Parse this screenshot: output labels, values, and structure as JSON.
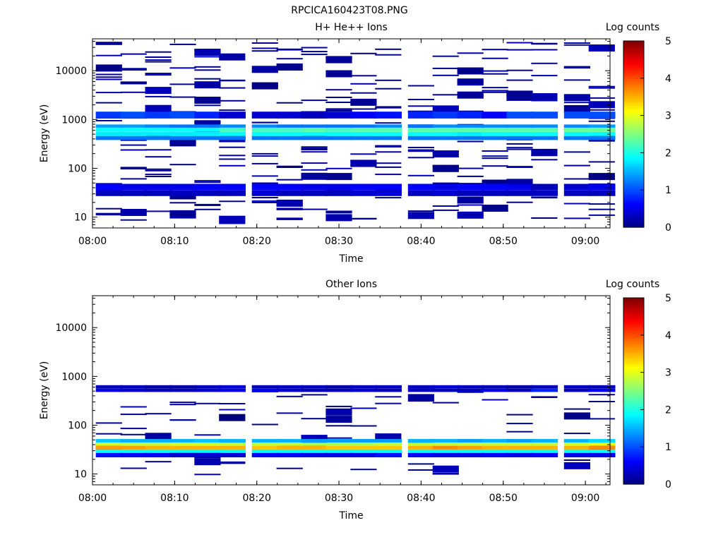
{
  "image_title": "RPCICA160423T08.PNG",
  "chart_data": [
    {
      "type": "heatmap",
      "title": "H+ He++ Ions",
      "xlabel": "Time",
      "ylabel": "Energy (eV)",
      "y_scale": "log",
      "ylim": [
        6,
        45000
      ],
      "xlim": [
        "08:00",
        "09:03"
      ],
      "x_ticks": [
        "08:00",
        "08:10",
        "08:20",
        "08:30",
        "08:40",
        "08:50",
        "09:00"
      ],
      "y_ticks": [
        "10",
        "100",
        "1000",
        "10000"
      ],
      "colorbar": {
        "label": "Log counts",
        "ticks": [
          "0",
          "1",
          "2",
          "3",
          "4",
          "5"
        ],
        "range": [
          0,
          5
        ],
        "colormap": "jet"
      },
      "time_bins": [
        "08:02",
        "08:05",
        "08:08",
        "08:11",
        "08:14",
        "08:17",
        "08:21",
        "08:24",
        "08:27",
        "08:30",
        "08:33",
        "08:36",
        "08:40",
        "08:43",
        "08:46",
        "08:49",
        "08:52",
        "08:55",
        "08:59",
        "09:02"
      ],
      "bands": [
        {
          "e_lo": 380,
          "e_hi": 460,
          "log_counts": [
            1.2,
            1.2,
            1.2,
            1.2,
            1.2,
            1.2,
            1.2,
            1.2,
            1.2,
            1.2,
            1.2,
            1.2,
            1.2,
            1.2,
            1.2,
            1.2,
            1.2,
            1.2,
            1.2,
            1.2
          ]
        },
        {
          "e_lo": 460,
          "e_hi": 560,
          "log_counts": [
            1.8,
            1.8,
            1.8,
            1.8,
            1.8,
            1.9,
            1.9,
            1.9,
            1.9,
            1.9,
            1.9,
            1.9,
            1.9,
            1.9,
            1.8,
            1.9,
            1.9,
            1.9,
            1.9,
            1.9
          ]
        },
        {
          "e_lo": 560,
          "e_hi": 680,
          "log_counts": [
            1.9,
            1.9,
            1.9,
            1.9,
            1.9,
            2.2,
            2.2,
            2.2,
            2.3,
            2.2,
            2.3,
            2.3,
            2.3,
            2.3,
            2.3,
            2.3,
            2.3,
            2.3,
            2.4,
            2.4
          ]
        },
        {
          "e_lo": 680,
          "e_hi": 790,
          "log_counts": [
            1.4,
            1.4,
            1.3,
            1.2,
            1.2,
            1.3,
            1.3,
            1.2,
            1.2,
            1.2,
            1.2,
            1.3,
            1.2,
            1.3,
            1.3,
            1.3,
            1.3,
            1.3,
            1.3,
            1.4
          ]
        },
        {
          "e_lo": 1050,
          "e_hi": 1450,
          "log_counts": [
            0.9,
            1.0,
            0.9,
            1.0,
            0.8,
            0.4,
            0.4,
            0.4,
            0.3,
            0.4,
            0.6,
            0.7,
            0.8,
            0.9,
            0.8,
            0.6,
            1.0,
            1.0,
            1.0,
            1.0
          ]
        },
        {
          "e_lo": 36,
          "e_hi": 48,
          "log_counts": [
            0.6,
            0.5,
            0.5,
            0.5,
            0.6,
            0.6,
            0.6,
            0.6,
            0.5,
            0.5,
            0.6,
            0.6,
            0.6,
            0.5,
            0.6,
            0.6,
            0.5,
            0.3,
            0.4,
            0.5
          ]
        },
        {
          "e_lo": 27,
          "e_hi": 36,
          "log_counts": [
            0.3,
            0.3,
            0.3,
            0.3,
            0.3,
            0.3,
            0.4,
            0.3,
            0.3,
            0.3,
            0.4,
            0.4,
            0.3,
            0.4,
            0.3,
            0.3,
            0.3,
            0.3,
            0.3,
            0.3
          ]
        }
      ],
      "sparse_bins": "scattered single-count bins (log counts ≈ 0–0.3) across 9–40000 eV"
    },
    {
      "type": "heatmap",
      "title": "Other Ions",
      "xlabel": "Time",
      "ylabel": "Energy (eV)",
      "y_scale": "log",
      "ylim": [
        6,
        45000
      ],
      "xlim": [
        "08:00",
        "09:03"
      ],
      "x_ticks": [
        "08:00",
        "08:10",
        "08:20",
        "08:30",
        "08:40",
        "08:50",
        "09:00"
      ],
      "y_ticks": [
        "10",
        "100",
        "1000",
        "10000"
      ],
      "colorbar": {
        "label": "Log counts",
        "ticks": [
          "0",
          "1",
          "2",
          "3",
          "4",
          "5"
        ],
        "range": [
          0,
          5
        ],
        "colormap": "jet"
      },
      "time_bins": [
        "08:02",
        "08:05",
        "08:08",
        "08:11",
        "08:14",
        "08:17",
        "08:21",
        "08:24",
        "08:27",
        "08:30",
        "08:33",
        "08:36",
        "08:40",
        "08:43",
        "08:46",
        "08:49",
        "08:52",
        "08:55",
        "08:59",
        "09:02"
      ],
      "bands": [
        {
          "e_lo": 27,
          "e_hi": 32,
          "log_counts": [
            1.9,
            1.9,
            1.9,
            1.9,
            1.9,
            1.9,
            1.9,
            1.9,
            1.9,
            1.9,
            1.9,
            1.9,
            1.9,
            1.9,
            1.9,
            1.9,
            1.9,
            1.9,
            1.9,
            1.9
          ]
        },
        {
          "e_lo": 32,
          "e_hi": 38,
          "log_counts": [
            3.6,
            3.6,
            3.5,
            3.5,
            3.5,
            3.5,
            3.4,
            3.5,
            3.5,
            3.4,
            3.4,
            3.4,
            3.5,
            3.7,
            3.6,
            3.5,
            3.5,
            3.5,
            3.5,
            3.7
          ]
        },
        {
          "e_lo": 38,
          "e_hi": 44,
          "log_counts": [
            2.9,
            2.8,
            2.8,
            2.9,
            2.9,
            2.8,
            2.8,
            2.8,
            2.7,
            2.7,
            2.7,
            2.8,
            2.8,
            2.8,
            2.8,
            2.8,
            2.8,
            2.8,
            2.9,
            3.0
          ]
        },
        {
          "e_lo": 44,
          "e_hi": 52,
          "log_counts": [
            1.6,
            1.5,
            1.5,
            1.5,
            1.6,
            1.5,
            1.5,
            1.5,
            1.4,
            1.4,
            1.4,
            1.4,
            1.5,
            1.5,
            1.4,
            1.5,
            1.4,
            1.5,
            1.5,
            1.7
          ]
        },
        {
          "e_lo": 22,
          "e_hi": 27,
          "log_counts": [
            0.7,
            0.6,
            0.6,
            0.4,
            0.4,
            0.4,
            0.6,
            0.6,
            0.5,
            0.5,
            0.5,
            0.7,
            0.6,
            0.5,
            0.5,
            0.6,
            0.5,
            0.6,
            0.5,
            0.5
          ]
        },
        {
          "e_lo": 480,
          "e_hi": 560,
          "log_counts": [
            0.5,
            0.4,
            0.3,
            0.3,
            0.4,
            0.5,
            0.6,
            0.4,
            0.3,
            0.3,
            0.4,
            0.3,
            0.3,
            0.3,
            0.3,
            0.5,
            0.3,
            0.8,
            0.3,
            0.6
          ]
        },
        {
          "e_lo": 560,
          "e_hi": 660,
          "log_counts": [
            0.3,
            0.3,
            0.2,
            0.2,
            0.3,
            0.4,
            0.3,
            0.3,
            0.3,
            0.2,
            0.3,
            0.3,
            0.3,
            0.4,
            0.3,
            0.3,
            0.2,
            0.3,
            0.3,
            0.3
          ]
        }
      ],
      "sparse_bins": "scattered single-count bins (log counts ≈ 0–0.3) across 10–4500 eV"
    }
  ]
}
